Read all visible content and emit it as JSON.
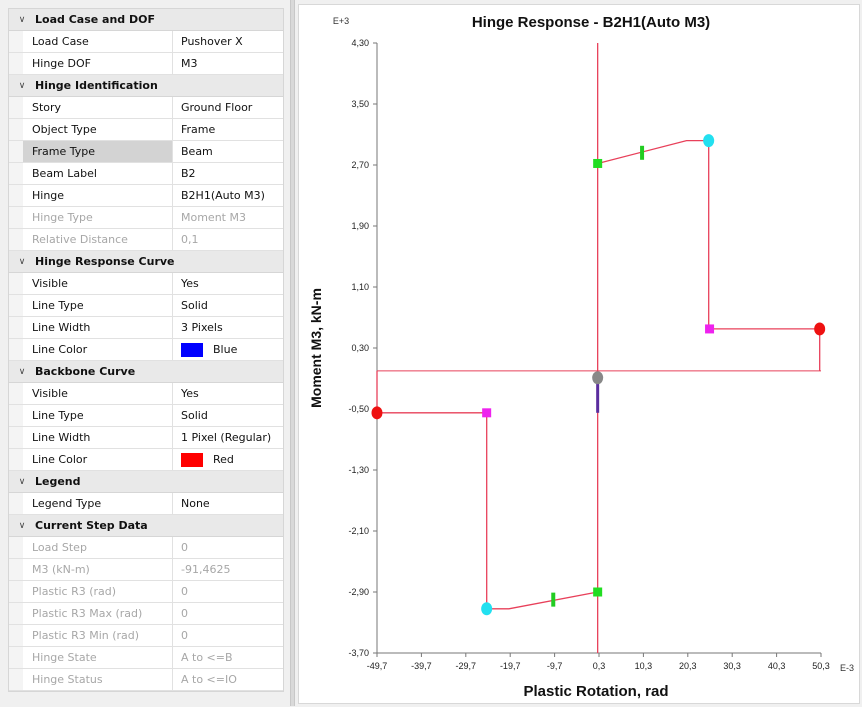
{
  "property_grid": {
    "sections": [
      {
        "title": "Load Case and DOF",
        "rows": [
          {
            "label": "Load Case",
            "value": "Pushover X"
          },
          {
            "label": "Hinge DOF",
            "value": "M3"
          }
        ]
      },
      {
        "title": "Hinge Identification",
        "rows": [
          {
            "label": "Story",
            "value": "Ground Floor"
          },
          {
            "label": "Object Type",
            "value": "Frame"
          },
          {
            "label": "Frame Type",
            "value": "Beam",
            "selected": true
          },
          {
            "label": "Beam Label",
            "value": "B2"
          },
          {
            "label": "Hinge",
            "value": "B2H1(Auto M3)"
          },
          {
            "label": "Hinge Type",
            "value": "Moment M3",
            "disabled": true
          },
          {
            "label": "Relative Distance",
            "value": "0,1",
            "disabled": true
          }
        ]
      },
      {
        "title": "Hinge Response Curve",
        "rows": [
          {
            "label": "Visible",
            "value": "Yes"
          },
          {
            "label": "Line Type",
            "value": "Solid"
          },
          {
            "label": "Line Width",
            "value": "3 Pixels"
          },
          {
            "label": "Line Color",
            "value": "Blue",
            "swatch": "#0000ff"
          }
        ]
      },
      {
        "title": "Backbone Curve",
        "rows": [
          {
            "label": "Visible",
            "value": "Yes"
          },
          {
            "label": "Line Type",
            "value": "Solid"
          },
          {
            "label": "Line Width",
            "value": "1 Pixel (Regular)"
          },
          {
            "label": "Line Color",
            "value": "Red",
            "swatch": "#ff0000"
          }
        ]
      },
      {
        "title": "Legend",
        "rows": [
          {
            "label": "Legend Type",
            "value": "None"
          }
        ]
      },
      {
        "title": "Current Step Data",
        "rows": [
          {
            "label": "Load Step",
            "value": "0",
            "disabled": true
          },
          {
            "label": "M3 (kN-m)",
            "value": "-91,4625",
            "disabled": true
          },
          {
            "label": "Plastic R3 (rad)",
            "value": "0",
            "disabled": true
          },
          {
            "label": "Plastic R3 Max (rad)",
            "value": "0",
            "disabled": true
          },
          {
            "label": "Plastic R3 Min (rad)",
            "value": "0",
            "disabled": true
          },
          {
            "label": "Hinge State",
            "value": "A to <=B",
            "disabled": true
          },
          {
            "label": "Hinge Status",
            "value": "A to <=IO",
            "disabled": true
          }
        ]
      }
    ]
  },
  "chart_data": {
    "type": "line",
    "title": "Hinge Response - B2H1(Auto M3)",
    "xlabel": "Plastic Rotation, rad",
    "ylabel": "Moment M3, kN-m",
    "x_multiplier": "E-3",
    "y_multiplier": "E+3",
    "xlim": [
      -49.7,
      50.3
    ],
    "ylim": [
      -3.7,
      4.3
    ],
    "x_ticks": [
      "-49,7",
      "-39,7",
      "-29,7",
      "-19,7",
      "-9,7",
      "0,3",
      "10,3",
      "20,3",
      "30,3",
      "40,3",
      "50,3"
    ],
    "y_ticks": [
      "4,30",
      "3,50",
      "2,70",
      "1,90",
      "1,10",
      "0,30",
      "-0,50",
      "-1,30",
      "-2,10",
      "-2,90",
      "-3,70"
    ],
    "x_tick_values": [
      -49.7,
      -39.7,
      -29.7,
      -19.7,
      -9.7,
      0.3,
      10.3,
      20.3,
      30.3,
      40.3,
      50.3
    ],
    "y_tick_values": [
      4.3,
      3.5,
      2.7,
      1.9,
      1.1,
      0.3,
      -0.5,
      -1.3,
      -2.1,
      -2.9,
      -3.7
    ],
    "grid": false,
    "backbone_color": "#e8405a",
    "backbone_positive": [
      [
        0,
        2.72
      ],
      [
        20,
        3.02
      ],
      [
        25,
        3.02
      ],
      [
        25,
        0.55
      ],
      [
        50,
        0.55
      ],
      [
        50,
        0
      ]
    ],
    "backbone_negative": [
      [
        0,
        -2.9
      ],
      [
        -20,
        -3.12
      ],
      [
        -25,
        -3.12
      ],
      [
        -25,
        -0.55
      ],
      [
        -49.7,
        -0.55
      ],
      [
        -49.7,
        0
      ]
    ],
    "axis_lines": {
      "vertical_x": 0,
      "horizontal_y": 0
    },
    "markers": [
      {
        "x": 0,
        "y": 2.72,
        "color": "#22dd22",
        "shape": "square"
      },
      {
        "x": 10,
        "y": 2.86,
        "color": "#22cc22",
        "shape": "dash"
      },
      {
        "x": 25,
        "y": 3.02,
        "color": "#22e0f0",
        "shape": "dot"
      },
      {
        "x": 25.2,
        "y": 0.55,
        "color": "#ee22ee",
        "shape": "square"
      },
      {
        "x": 50,
        "y": 0.55,
        "color": "#ee1111",
        "shape": "dot"
      },
      {
        "x": 0,
        "y": -2.9,
        "color": "#22dd22",
        "shape": "square"
      },
      {
        "x": -10,
        "y": -3.0,
        "color": "#22cc22",
        "shape": "dash"
      },
      {
        "x": -25,
        "y": -3.12,
        "color": "#22e0f0",
        "shape": "dot"
      },
      {
        "x": -25,
        "y": -0.55,
        "color": "#ee22ee",
        "shape": "square"
      },
      {
        "x": -49.7,
        "y": -0.55,
        "color": "#ee1111",
        "shape": "dot"
      },
      {
        "x": 0,
        "y": -0.09,
        "color": "#888888",
        "shape": "dot"
      }
    ],
    "hinge_response": {
      "x": [
        0,
        0
      ],
      "y": [
        -0.09,
        -0.55
      ],
      "color": "#5a2d9e"
    }
  }
}
